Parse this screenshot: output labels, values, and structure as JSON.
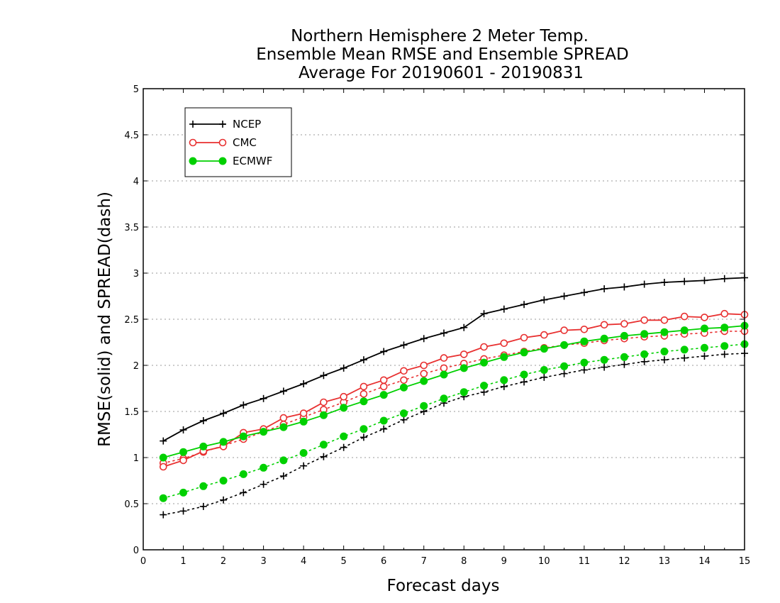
{
  "chart_data": {
    "type": "line",
    "title": [
      "Northern Hemisphere 2 Meter Temp.",
      "Ensemble Mean RMSE and Ensemble SPREAD",
      "Average For 20190601 - 20190831"
    ],
    "xlabel": "Forecast days",
    "ylabel": "RMSE(solid) and SPREAD(dash)",
    "xlim": [
      0,
      15
    ],
    "ylim": [
      0,
      5
    ],
    "xticks": [
      0,
      1,
      2,
      3,
      4,
      5,
      6,
      7,
      8,
      9,
      10,
      11,
      12,
      13,
      14,
      15
    ],
    "yticks": [
      0,
      0.5,
      1,
      1.5,
      2,
      2.5,
      3,
      3.5,
      4,
      4.5,
      5
    ],
    "ytick_labels": [
      "0",
      "0.5",
      "1",
      "1.5",
      "2",
      "2.5",
      "3",
      "3.5",
      "4",
      "4.5",
      "5"
    ],
    "grid": "horizontal dotted",
    "legend_position": "top-left",
    "x": [
      0.5,
      1,
      1.5,
      2,
      2.5,
      3,
      3.5,
      4,
      4.5,
      5,
      5.5,
      6,
      6.5,
      7,
      7.5,
      8,
      8.5,
      9,
      9.5,
      10,
      10.5,
      11,
      11.5,
      12,
      12.5,
      13,
      13.5,
      14,
      14.5,
      15
    ],
    "series": [
      {
        "name": "NCEP",
        "color": "#000000",
        "marker": "plus",
        "rmse": [
          1.18,
          1.3,
          1.4,
          1.48,
          1.57,
          1.64,
          1.72,
          1.8,
          1.89,
          1.97,
          2.06,
          2.15,
          2.22,
          2.29,
          2.35,
          2.41,
          2.56,
          2.61,
          2.66,
          2.71,
          2.75,
          2.79,
          2.83,
          2.85,
          2.88,
          2.9,
          2.91,
          2.92,
          2.94,
          2.95
        ],
        "spread": [
          0.38,
          0.42,
          0.47,
          0.54,
          0.62,
          0.71,
          0.8,
          0.91,
          1.01,
          1.11,
          1.22,
          1.31,
          1.41,
          1.5,
          1.59,
          1.66,
          1.71,
          1.77,
          1.82,
          1.87,
          1.91,
          1.95,
          1.98,
          2.01,
          2.04,
          2.06,
          2.08,
          2.1,
          2.12,
          2.13
        ]
      },
      {
        "name": "CMC",
        "color": "#e83030",
        "marker": "open-circle",
        "rmse": [
          0.9,
          0.97,
          1.07,
          1.12,
          1.27,
          1.31,
          1.43,
          1.48,
          1.6,
          1.66,
          1.77,
          1.84,
          1.94,
          2.0,
          2.08,
          2.12,
          2.2,
          2.24,
          2.3,
          2.33,
          2.38,
          2.39,
          2.44,
          2.45,
          2.49,
          2.49,
          2.53,
          2.52,
          2.56,
          2.55
        ],
        "spread": [
          0.94,
          0.99,
          1.06,
          1.13,
          1.2,
          1.28,
          1.36,
          1.44,
          1.52,
          1.6,
          1.69,
          1.77,
          1.84,
          1.91,
          1.97,
          2.02,
          2.07,
          2.11,
          2.15,
          2.19,
          2.22,
          2.24,
          2.27,
          2.29,
          2.31,
          2.32,
          2.34,
          2.35,
          2.37,
          2.37
        ]
      },
      {
        "name": "ECMWF",
        "color": "#00d000",
        "marker": "filled-circle",
        "rmse": [
          1.0,
          1.06,
          1.12,
          1.17,
          1.23,
          1.28,
          1.33,
          1.39,
          1.46,
          1.54,
          1.61,
          1.68,
          1.76,
          1.83,
          1.9,
          1.97,
          2.03,
          2.09,
          2.14,
          2.18,
          2.22,
          2.26,
          2.29,
          2.32,
          2.34,
          2.36,
          2.38,
          2.4,
          2.41,
          2.43
        ],
        "spread": [
          0.56,
          0.62,
          0.69,
          0.75,
          0.82,
          0.89,
          0.97,
          1.05,
          1.14,
          1.23,
          1.31,
          1.4,
          1.48,
          1.56,
          1.64,
          1.71,
          1.78,
          1.84,
          1.9,
          1.95,
          1.99,
          2.03,
          2.06,
          2.09,
          2.12,
          2.15,
          2.17,
          2.19,
          2.21,
          2.23
        ]
      }
    ]
  }
}
